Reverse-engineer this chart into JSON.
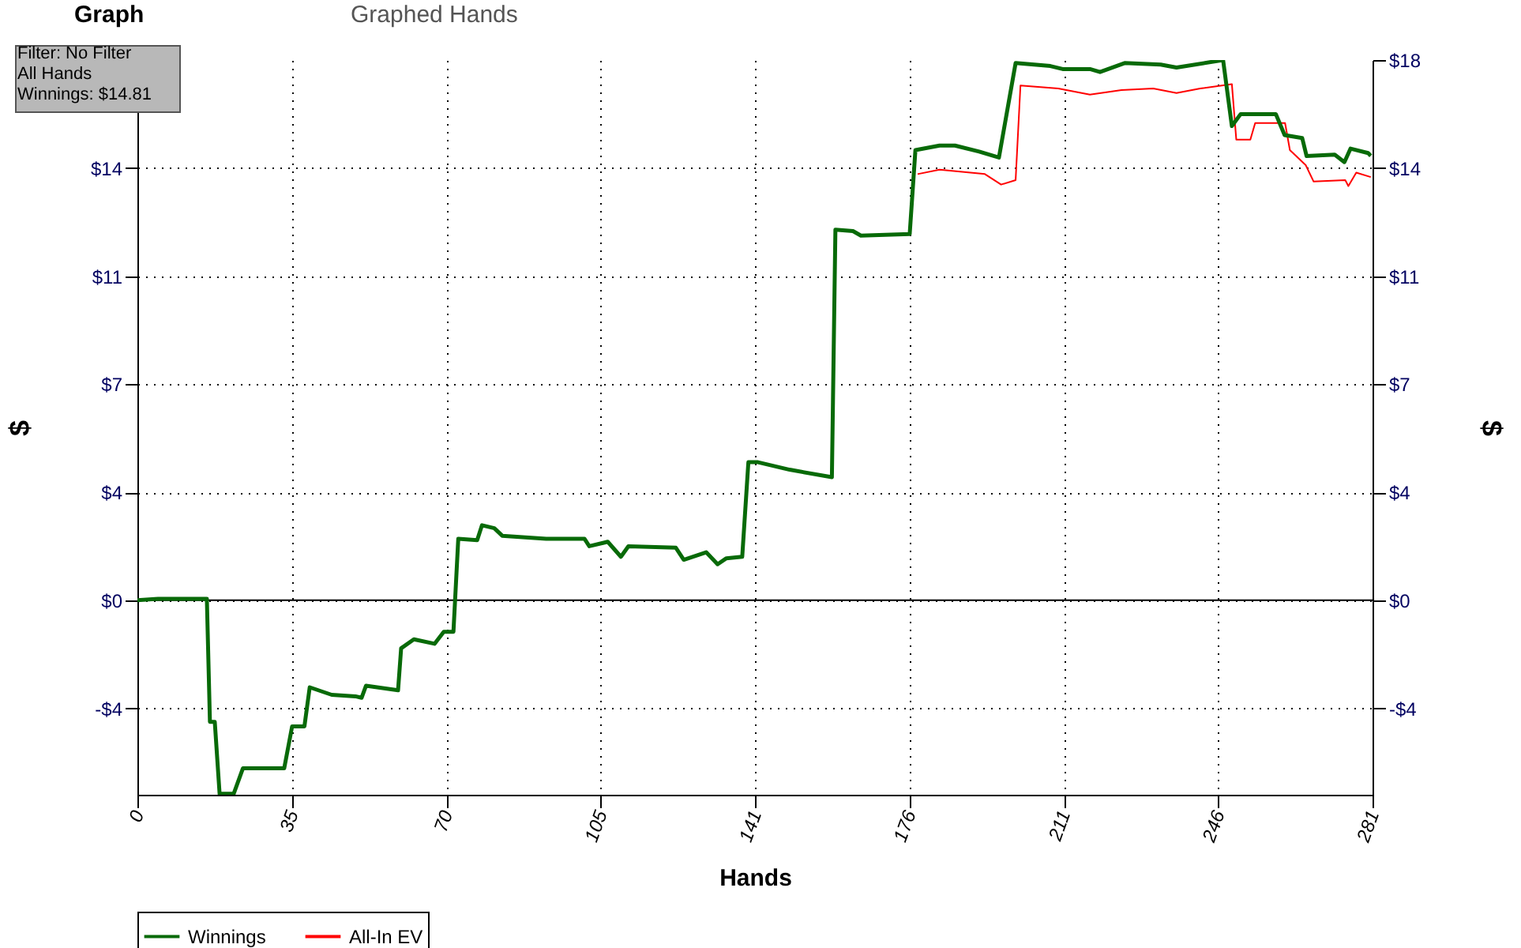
{
  "chart_data": {
    "type": "line",
    "xlabel": "Hands",
    "ylabel": "$",
    "y2label": "$",
    "annotations": [
      "Graph",
      "Graphed Hands",
      "Filter: No Filter",
      "All Hands",
      "Winnings: $14.81"
    ],
    "xlim": [
      0,
      281
    ],
    "xticks": [
      0,
      {
        "value": 35.125,
        "label": "35"
      },
      {
        "value": 70.25,
        "label": "70"
      },
      {
        "value": 105.375,
        "label": "105"
      },
      {
        "value": 140.5,
        "label": "141"
      },
      {
        "value": 175.625,
        "label": "176"
      },
      {
        "value": 210.75,
        "label": "211"
      },
      {
        "value": 245.875,
        "label": "246"
      },
      {
        "value": 281,
        "label": "281"
      }
    ],
    "ylim": [
      -6.48,
      18
    ],
    "yticks": [
      {
        "value": -3.6,
        "label": "-$4"
      },
      {
        "value": 0,
        "label": "$0"
      },
      {
        "value": 3.6,
        "label": "$4"
      },
      {
        "value": 7.2,
        "label": "$7"
      },
      {
        "value": 10.8,
        "label": "$11"
      },
      {
        "value": 14.4,
        "label": "$14"
      }
    ],
    "y2lim": [
      -6.48,
      18
    ],
    "y2ticks": [
      {
        "value": -3.6,
        "label": "-$4"
      },
      {
        "value": 0,
        "label": "$0"
      },
      {
        "value": 3.6,
        "label": "$4"
      },
      {
        "value": 7.2,
        "label": "$7"
      },
      {
        "value": 10.8,
        "label": "$11"
      },
      {
        "value": 14.4,
        "label": "$14"
      },
      {
        "value": 18,
        "label": "$18"
      }
    ],
    "grid": true,
    "legend": "bottom left",
    "line_style": "solid",
    "marker": "none",
    "ref_lines": [
      {
        "axis": "y",
        "value": 0,
        "color": "#000000",
        "line_style": "solid"
      }
    ],
    "series": [
      {
        "name": "Winnings",
        "color": "#086a08",
        "x": [
          0,
          4.7,
          15.8,
          16.5,
          17.6,
          18.7,
          21.9,
          24,
          33.4,
          35.2,
          38,
          39.2,
          44.2,
          49.6,
          51,
          52,
          59.3,
          60,
          62.9,
          67.6,
          69.7,
          71.9,
          73,
          77.3,
          78.4,
          81.2,
          83,
          93,
          101.7,
          102.8,
          107,
          110,
          111.7,
          122.5,
          124.3,
          129.4,
          132,
          134,
          137.6,
          139,
          141.2,
          148.4,
          158,
          158.8,
          162.8,
          164.6,
          175.7,
          177,
          182.5,
          186,
          191.5,
          196,
          199.8,
          207.7,
          210.5,
          216.7,
          219,
          224.6,
          232.8,
          236.4,
          247,
          249,
          251,
          259,
          261,
          265,
          266,
          272.4,
          274.6,
          276,
          280,
          280.6
        ],
        "values": [
          0,
          0.05,
          0.05,
          -4.05,
          -4.05,
          -6.45,
          -6.45,
          -5.6,
          -5.6,
          -4.2,
          -4.2,
          -2.9,
          -3.15,
          -3.2,
          -3.25,
          -2.85,
          -3.0,
          -1.6,
          -1.3,
          -1.45,
          -1.05,
          -1.05,
          2.05,
          2.0,
          2.5,
          2.4,
          2.15,
          2.05,
          2.05,
          1.8,
          1.95,
          1.45,
          1.8,
          1.75,
          1.35,
          1.6,
          1.2,
          1.4,
          1.45,
          4.6,
          4.6,
          4.35,
          4.1,
          12.35,
          12.3,
          12.15,
          12.2,
          15.0,
          15.15,
          15.15,
          14.95,
          14.75,
          17.9,
          17.8,
          17.7,
          17.7,
          17.6,
          17.9,
          17.85,
          17.75,
          18.0,
          15.8,
          16.2,
          16.2,
          15.5,
          15.4,
          14.8,
          14.85,
          14.6,
          15.05,
          14.9,
          14.81
        ]
      },
      {
        "name": "All-In EV",
        "color": "#ff0000",
        "x": [
          177.5,
          182.5,
          192.8,
          196.5,
          199.8,
          200.9,
          209.5,
          216.7,
          223.9,
          231.1,
          236.4,
          241.8,
          249,
          250,
          253.2,
          254.3,
          261.1,
          262.2,
          265.8,
          267.6,
          274.8,
          275.5,
          277.3,
          280.6
        ],
        "values": [
          14.2,
          14.35,
          14.2,
          13.85,
          14.0,
          17.15,
          17.05,
          16.85,
          17.0,
          17.05,
          16.9,
          17.05,
          17.2,
          15.35,
          15.35,
          15.9,
          15.9,
          15.0,
          14.5,
          13.95,
          14.0,
          13.8,
          14.25,
          14.1
        ]
      }
    ]
  }
}
